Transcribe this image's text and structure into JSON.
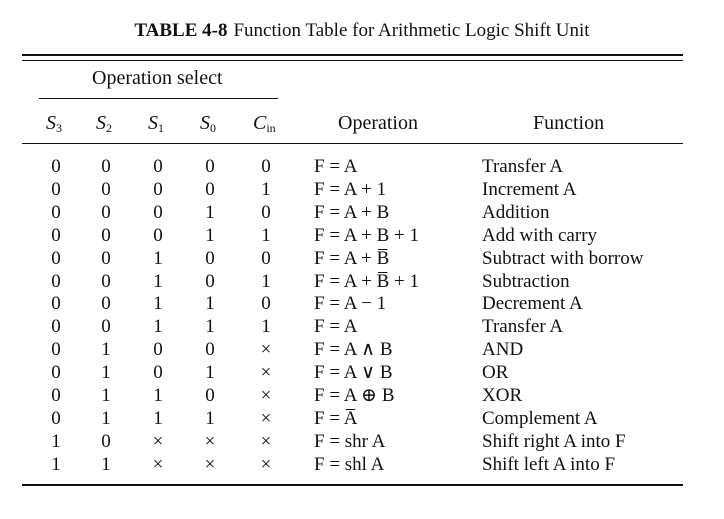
{
  "caption": {
    "label": "TABLE 4-8",
    "title": "Function Table for Arithmetic Logic Shift Unit"
  },
  "header": {
    "group": "Operation select",
    "s3": "S",
    "s3_sub": "3",
    "s2": "S",
    "s2_sub": "2",
    "s1": "S",
    "s1_sub": "1",
    "s0": "S",
    "s0_sub": "0",
    "cin": "C",
    "cin_sub": "in",
    "operation": "Operation",
    "function": "Function"
  },
  "rows": [
    {
      "s3": "0",
      "s2": "0",
      "s1": "0",
      "s0": "0",
      "cin": "0",
      "operation": "F = A",
      "function": "Transfer A"
    },
    {
      "s3": "0",
      "s2": "0",
      "s1": "0",
      "s0": "0",
      "cin": "1",
      "operation": "F = A + 1",
      "function": "Increment A"
    },
    {
      "s3": "0",
      "s2": "0",
      "s1": "0",
      "s0": "1",
      "cin": "0",
      "operation": "F = A + B",
      "function": "Addition"
    },
    {
      "s3": "0",
      "s2": "0",
      "s1": "0",
      "s0": "1",
      "cin": "1",
      "operation": "F = A + B + 1",
      "function": "Add with carry"
    },
    {
      "s3": "0",
      "s2": "0",
      "s1": "1",
      "s0": "0",
      "cin": "0",
      "operation": "F = A + B̅",
      "function": "Subtract with borrow"
    },
    {
      "s3": "0",
      "s2": "0",
      "s1": "1",
      "s0": "0",
      "cin": "1",
      "operation": "F = A + B̅ + 1",
      "function": "Subtraction"
    },
    {
      "s3": "0",
      "s2": "0",
      "s1": "1",
      "s0": "1",
      "cin": "0",
      "operation": "F = A − 1",
      "function": "Decrement A"
    },
    {
      "s3": "0",
      "s2": "0",
      "s1": "1",
      "s0": "1",
      "cin": "1",
      "operation": "F = A",
      "function": "Transfer A"
    },
    {
      "s3": "0",
      "s2": "1",
      "s1": "0",
      "s0": "0",
      "cin": "×",
      "operation": "F = A ∧ B",
      "function": "AND"
    },
    {
      "s3": "0",
      "s2": "1",
      "s1": "0",
      "s0": "1",
      "cin": "×",
      "operation": "F = A ∨ B",
      "function": "OR"
    },
    {
      "s3": "0",
      "s2": "1",
      "s1": "1",
      "s0": "0",
      "cin": "×",
      "operation": "F = A ⊕ B",
      "function": "XOR"
    },
    {
      "s3": "0",
      "s2": "1",
      "s1": "1",
      "s0": "1",
      "cin": "×",
      "operation": "F = A̅",
      "function": "Complement A"
    },
    {
      "s3": "1",
      "s2": "0",
      "s1": "×",
      "s0": "×",
      "cin": "×",
      "operation": "F = shr A",
      "function": "Shift right A into F"
    },
    {
      "s3": "1",
      "s2": "1",
      "s1": "×",
      "s0": "×",
      "cin": "×",
      "operation": "F = shl A",
      "function": "Shift left A into F"
    }
  ]
}
